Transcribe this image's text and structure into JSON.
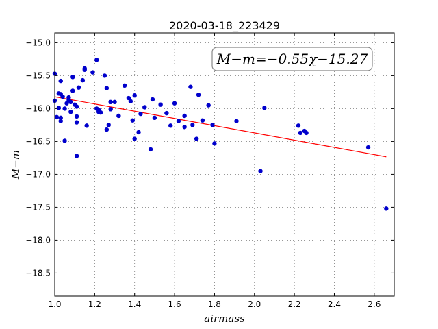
{
  "chart_data": {
    "type": "scatter",
    "title": "2020-03-18_223429",
    "xlabel": "airmass",
    "ylabel": "M−m",
    "xlim": [
      1.0,
      2.7
    ],
    "ylim": [
      -18.85,
      -14.85
    ],
    "y_inverted": true,
    "grid": true,
    "x_ticks": [
      1.0,
      1.2,
      1.4,
      1.6,
      1.8,
      2.0,
      2.2,
      2.4,
      2.6
    ],
    "x_tick_labels": [
      "1.0",
      "1.2",
      "1.4",
      "1.6",
      "1.8",
      "2.0",
      "2.2",
      "2.4",
      "2.6"
    ],
    "y_ticks": [
      -15.0,
      -15.5,
      -16.0,
      -16.5,
      -17.0,
      -17.5,
      -18.0,
      -18.5
    ],
    "y_tick_labels": [
      "−15.0",
      "−15.5",
      "−16.0",
      "−16.5",
      "−17.0",
      "−17.5",
      "−18.0",
      "−18.5"
    ],
    "annotation": "M−m=−0.55χ−15.27",
    "annotation_position": "top-right",
    "fit": {
      "slope": -0.55,
      "intercept": -15.27,
      "x_range": [
        1.0,
        2.66
      ],
      "color": "#ff0000"
    },
    "point_color": "#0000cc",
    "points": [
      [
        1.0,
        -15.47
      ],
      [
        1.0,
        -15.88
      ],
      [
        1.01,
        -16.13
      ],
      [
        1.02,
        -15.77
      ],
      [
        1.02,
        -15.99
      ],
      [
        1.03,
        -15.58
      ],
      [
        1.03,
        -15.78
      ],
      [
        1.03,
        -16.14
      ],
      [
        1.03,
        -16.19
      ],
      [
        1.04,
        -15.82
      ],
      [
        1.05,
        -16.0
      ],
      [
        1.05,
        -16.49
      ],
      [
        1.06,
        -15.92
      ],
      [
        1.07,
        -15.83
      ],
      [
        1.07,
        -15.87
      ],
      [
        1.08,
        -15.9
      ],
      [
        1.08,
        -16.05
      ],
      [
        1.09,
        -15.73
      ],
      [
        1.09,
        -15.52
      ],
      [
        1.1,
        -15.94
      ],
      [
        1.11,
        -16.12
      ],
      [
        1.11,
        -16.21
      ],
      [
        1.11,
        -15.97
      ],
      [
        1.11,
        -16.72
      ],
      [
        1.12,
        -15.68
      ],
      [
        1.14,
        -15.57
      ],
      [
        1.15,
        -15.41
      ],
      [
        1.15,
        -15.39
      ],
      [
        1.16,
        -16.26
      ],
      [
        1.19,
        -15.45
      ],
      [
        1.21,
        -15.26
      ],
      [
        1.21,
        -16.0
      ],
      [
        1.22,
        -16.02
      ],
      [
        1.22,
        -16.05
      ],
      [
        1.23,
        -16.06
      ],
      [
        1.25,
        -15.5
      ],
      [
        1.26,
        -15.69
      ],
      [
        1.26,
        -16.32
      ],
      [
        1.27,
        -16.25
      ],
      [
        1.28,
        -16.01
      ],
      [
        1.28,
        -15.9
      ],
      [
        1.3,
        -15.9
      ],
      [
        1.32,
        -16.11
      ],
      [
        1.35,
        -15.65
      ],
      [
        1.37,
        -15.84
      ],
      [
        1.38,
        -15.89
      ],
      [
        1.39,
        -16.18
      ],
      [
        1.4,
        -15.8
      ],
      [
        1.4,
        -16.46
      ],
      [
        1.42,
        -16.36
      ],
      [
        1.43,
        -16.08
      ],
      [
        1.45,
        -15.98
      ],
      [
        1.48,
        -16.62
      ],
      [
        1.49,
        -15.86
      ],
      [
        1.5,
        -16.14
      ],
      [
        1.53,
        -15.94
      ],
      [
        1.56,
        -16.07
      ],
      [
        1.58,
        -16.26
      ],
      [
        1.6,
        -15.92
      ],
      [
        1.62,
        -16.19
      ],
      [
        1.65,
        -16.28
      ],
      [
        1.65,
        -16.11
      ],
      [
        1.68,
        -15.67
      ],
      [
        1.69,
        -16.25
      ],
      [
        1.71,
        -16.46
      ],
      [
        1.72,
        -15.79
      ],
      [
        1.74,
        -16.18
      ],
      [
        1.77,
        -15.95
      ],
      [
        1.79,
        -16.25
      ],
      [
        1.8,
        -16.53
      ],
      [
        1.91,
        -16.19
      ],
      [
        2.03,
        -16.95
      ],
      [
        2.05,
        -15.99
      ],
      [
        2.22,
        -16.26
      ],
      [
        2.23,
        -16.37
      ],
      [
        2.25,
        -16.34
      ],
      [
        2.26,
        -16.37
      ],
      [
        2.57,
        -16.59
      ],
      [
        2.66,
        -17.52
      ]
    ]
  }
}
